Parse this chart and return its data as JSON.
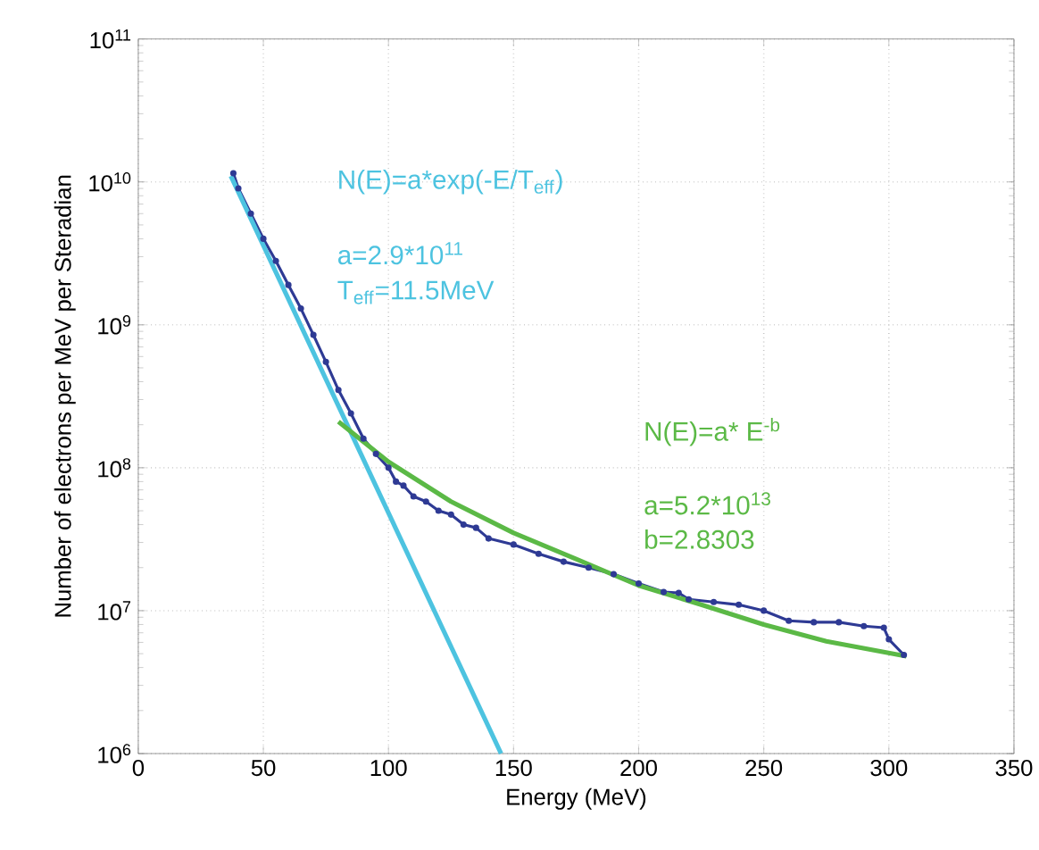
{
  "chart_data": {
    "type": "line",
    "xlabel": "Energy (MeV)",
    "ylabel": "Number of electrons per MeV per Steradian",
    "log": "y",
    "grid": true,
    "xlim": [
      0,
      350
    ],
    "xticks": [
      0,
      50,
      100,
      150,
      200,
      250,
      300,
      350
    ],
    "ylim": [
      1000000,
      100000000000
    ],
    "yticks": [
      {
        "value": 1000000,
        "label": "10$^{6}$"
      },
      {
        "value": 10000000,
        "label": "10$^{7}$"
      },
      {
        "value": 100000000,
        "label": "10$^{8}$"
      },
      {
        "value": 1000000000,
        "label": "10$^{9}$"
      },
      {
        "value": 10000000000,
        "label": "10$^{10}$"
      },
      {
        "value": 100000000000,
        "label": "10$^{11}$"
      }
    ],
    "series": [
      {
        "color": "#2e3a94",
        "marker": "circle",
        "x": [
          38,
          40,
          45,
          50,
          55,
          60,
          65,
          70,
          75,
          80,
          85,
          90,
          95,
          100,
          103,
          106,
          110,
          115,
          120,
          125,
          130,
          135,
          140,
          150,
          160,
          170,
          180,
          190,
          200,
          210,
          216,
          220,
          230,
          240,
          250,
          260,
          270,
          280,
          290,
          298,
          300,
          306
        ],
        "values": [
          11500000000,
          9000000000,
          6000000000,
          4000000000,
          2800000000,
          1900000000,
          1300000000,
          850000000,
          550000000,
          350000000,
          240000000,
          160000000,
          125000000,
          100000000,
          80000000,
          75000000,
          63000000,
          58000000,
          50000000,
          47000000,
          40000000,
          38000000,
          32000000,
          29000000,
          25000000,
          22000000,
          20000000,
          18000000,
          15500000,
          13500000,
          13300000,
          12000000,
          11500000,
          11000000,
          10000000,
          8500000,
          8300000,
          8300000,
          7800000,
          7600000,
          6300000,
          4900000
        ]
      },
      {
        "color": "#4dc3e0",
        "x": [
          37,
          145
        ],
        "values": [
          11000000000,
          1000000
        ]
      },
      {
        "color": "#5bb946",
        "x": [
          80,
          100,
          125,
          150,
          175,
          200,
          225,
          250,
          275,
          307
        ],
        "values": [
          210000000,
          110000000,
          58000000,
          35000000,
          23000000,
          15000000,
          11000000,
          8000000,
          6100000,
          4800000
        ]
      }
    ],
    "annotations": [
      "N(E)=a*exp(-E/T$_{eff}$)",
      "a=2.9*10$^{11}$",
      "T$_{eff}$=11.5MeV",
      "N(E)=a* E$^{-b}$",
      "a=5.2*10$^{13}$",
      "b=2.8303"
    ]
  }
}
